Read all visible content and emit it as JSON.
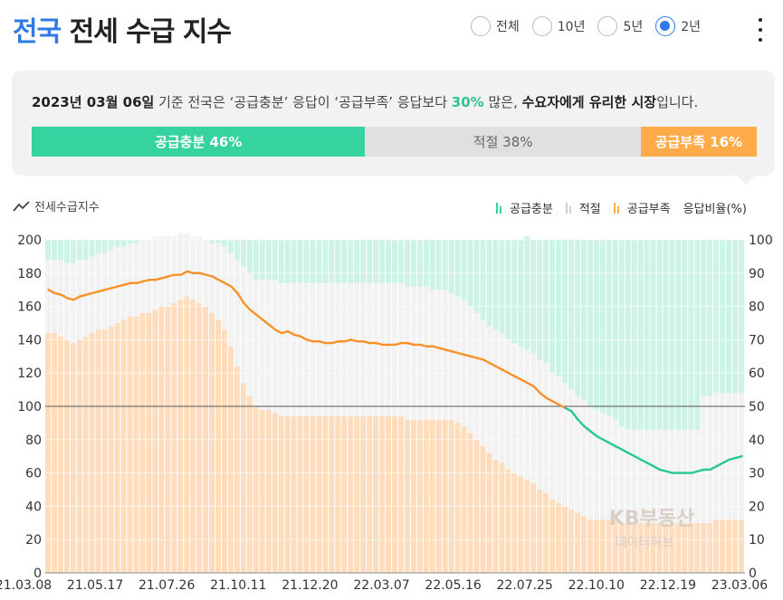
{
  "header": {
    "title_highlight": "전국",
    "title_rest": " 전세 수급 지수",
    "range_options": [
      {
        "label": "전체",
        "selected": false
      },
      {
        "label": "10년",
        "selected": false
      },
      {
        "label": "5년",
        "selected": false
      },
      {
        "label": "2년",
        "selected": true
      }
    ]
  },
  "summary": {
    "date": "2023년 03월 06일",
    "text_1": " 기준 전국은 ‘공급충분’ 응답이 ‘공급부족’ 응답보다 ",
    "diff": "30%",
    "text_2": " 많은, ",
    "conclusion": "수요자에게 유리한 시장",
    "text_3": "입니다.",
    "segments": [
      {
        "label": "공급충분 46%",
        "value": 46,
        "color": "#36d2a0"
      },
      {
        "label": "적절 38%",
        "value": 38,
        "color": "#e0e0e2"
      },
      {
        "label": "공급부족 16%",
        "value": 16,
        "color": "#ffab4a"
      }
    ]
  },
  "legend": {
    "index_label": "전세수급지수",
    "sufficient": "공급충분",
    "adequate": "적절",
    "shortage": "공급부족",
    "ratio_label": "응답비율(%)"
  },
  "watermark": {
    "line1": "KB부동산",
    "line2": "데이터허브"
  },
  "chart_data": {
    "type": "line+stacked-bar",
    "x_ticks": [
      "21.03.08",
      "21.05.17",
      "21.07.26",
      "21.10.11",
      "21.12.20",
      "22.03.07",
      "22.05.16",
      "22.07.25",
      "22.10.10",
      "22.12.19",
      "23.03.06"
    ],
    "y_left": {
      "min": 0,
      "max": 200,
      "ticks": [
        0,
        20,
        40,
        60,
        80,
        100,
        120,
        140,
        160,
        180,
        200
      ]
    },
    "y_right": {
      "min": 0,
      "max": 100,
      "ticks": [
        0,
        10,
        20,
        30,
        40,
        50,
        60,
        70,
        80,
        90,
        100
      ],
      "label": "응답비율(%)"
    },
    "reference_line": 100,
    "index_series": {
      "name": "전세수급지수",
      "values": [
        170,
        168,
        167,
        165,
        164,
        166,
        167,
        168,
        169,
        170,
        171,
        172,
        173,
        174,
        174,
        175,
        176,
        176,
        177,
        178,
        179,
        179,
        181,
        180,
        180,
        179,
        178,
        176,
        174,
        172,
        168,
        162,
        158,
        155,
        152,
        149,
        146,
        144,
        145,
        143,
        142,
        140,
        139,
        139,
        138,
        138,
        139,
        139,
        140,
        139,
        139,
        138,
        138,
        137,
        137,
        137,
        138,
        138,
        137,
        137,
        136,
        136,
        135,
        134,
        133,
        132,
        131,
        130,
        129,
        128,
        126,
        124,
        122,
        120,
        118,
        116,
        114,
        112,
        108,
        105,
        103,
        101,
        99,
        97,
        92,
        88,
        85,
        82,
        80,
        78,
        76,
        74,
        72,
        70,
        68,
        66,
        64,
        62,
        61,
        60,
        60,
        60,
        60,
        61,
        62,
        62,
        64,
        66,
        68,
        69,
        70
      ]
    },
    "bar_series": [
      {
        "name": "공급부족",
        "color": "#ffdcbc",
        "values": [
          72,
          72,
          71,
          70,
          69,
          70,
          71,
          72,
          73,
          73,
          74,
          75,
          76,
          77,
          77,
          78,
          78,
          79,
          80,
          80,
          81,
          82,
          83,
          82,
          81,
          80,
          78,
          76,
          73,
          68,
          62,
          57,
          53,
          50,
          49,
          49,
          48,
          47,
          47,
          47,
          47,
          47,
          47,
          47,
          47,
          47,
          47,
          47,
          47,
          47,
          47,
          47,
          47,
          47,
          47,
          47,
          47,
          46,
          46,
          46,
          46,
          46,
          46,
          46,
          46,
          45,
          44,
          42,
          40,
          38,
          36,
          34,
          33,
          31,
          30,
          29,
          28,
          27,
          25,
          24,
          22,
          21,
          20,
          19,
          18,
          17,
          16,
          16,
          16,
          16,
          16,
          15,
          15,
          15,
          15,
          15,
          15,
          15,
          15,
          15,
          15,
          15,
          15,
          15,
          15,
          15,
          16,
          16,
          16,
          16,
          16
        ]
      },
      {
        "name": "적절",
        "color": "#f2f2f2",
        "values": [
          22,
          22,
          23,
          23,
          24,
          24,
          23,
          23,
          23,
          23,
          23,
          23,
          22,
          22,
          22,
          22,
          22,
          22,
          21,
          21,
          20,
          20,
          19,
          19,
          20,
          20,
          21,
          23,
          25,
          28,
          32,
          35,
          37,
          38,
          39,
          39,
          40,
          40,
          40,
          40,
          40,
          40,
          40,
          40,
          40,
          40,
          40,
          40,
          40,
          40,
          40,
          40,
          40,
          40,
          40,
          40,
          40,
          40,
          40,
          40,
          40,
          39,
          39,
          39,
          38,
          38,
          38,
          38,
          38,
          38,
          38,
          39,
          39,
          39,
          39,
          39,
          39,
          39,
          39,
          39,
          38,
          38,
          37,
          36,
          35,
          35,
          34,
          33,
          32,
          31,
          30,
          29,
          28,
          28,
          28,
          28,
          28,
          28,
          28,
          28,
          28,
          28,
          28,
          28,
          38,
          38,
          38,
          38,
          38,
          38,
          38
        ]
      },
      {
        "name": "공급충분",
        "color": "#cdf3e6",
        "values": [
          6,
          6,
          6,
          7,
          7,
          6,
          6,
          5,
          4,
          4,
          3,
          2,
          2,
          1,
          1,
          0,
          0,
          0,
          0,
          0,
          0,
          0,
          0,
          0,
          0,
          0,
          1,
          1,
          2,
          4,
          6,
          8,
          10,
          12,
          12,
          12,
          12,
          13,
          13,
          13,
          13,
          13,
          13,
          13,
          13,
          13,
          13,
          13,
          13,
          13,
          13,
          13,
          13,
          13,
          13,
          13,
          13,
          14,
          14,
          14,
          14,
          15,
          15,
          15,
          16,
          17,
          18,
          20,
          22,
          24,
          26,
          27,
          28,
          30,
          31,
          32,
          34,
          34,
          36,
          37,
          40,
          41,
          43,
          45,
          47,
          48,
          50,
          51,
          52,
          53,
          54,
          56,
          57,
          57,
          57,
          57,
          57,
          57,
          57,
          57,
          57,
          57,
          57,
          57,
          47,
          47,
          46,
          46,
          46,
          46,
          46
        ]
      }
    ]
  }
}
